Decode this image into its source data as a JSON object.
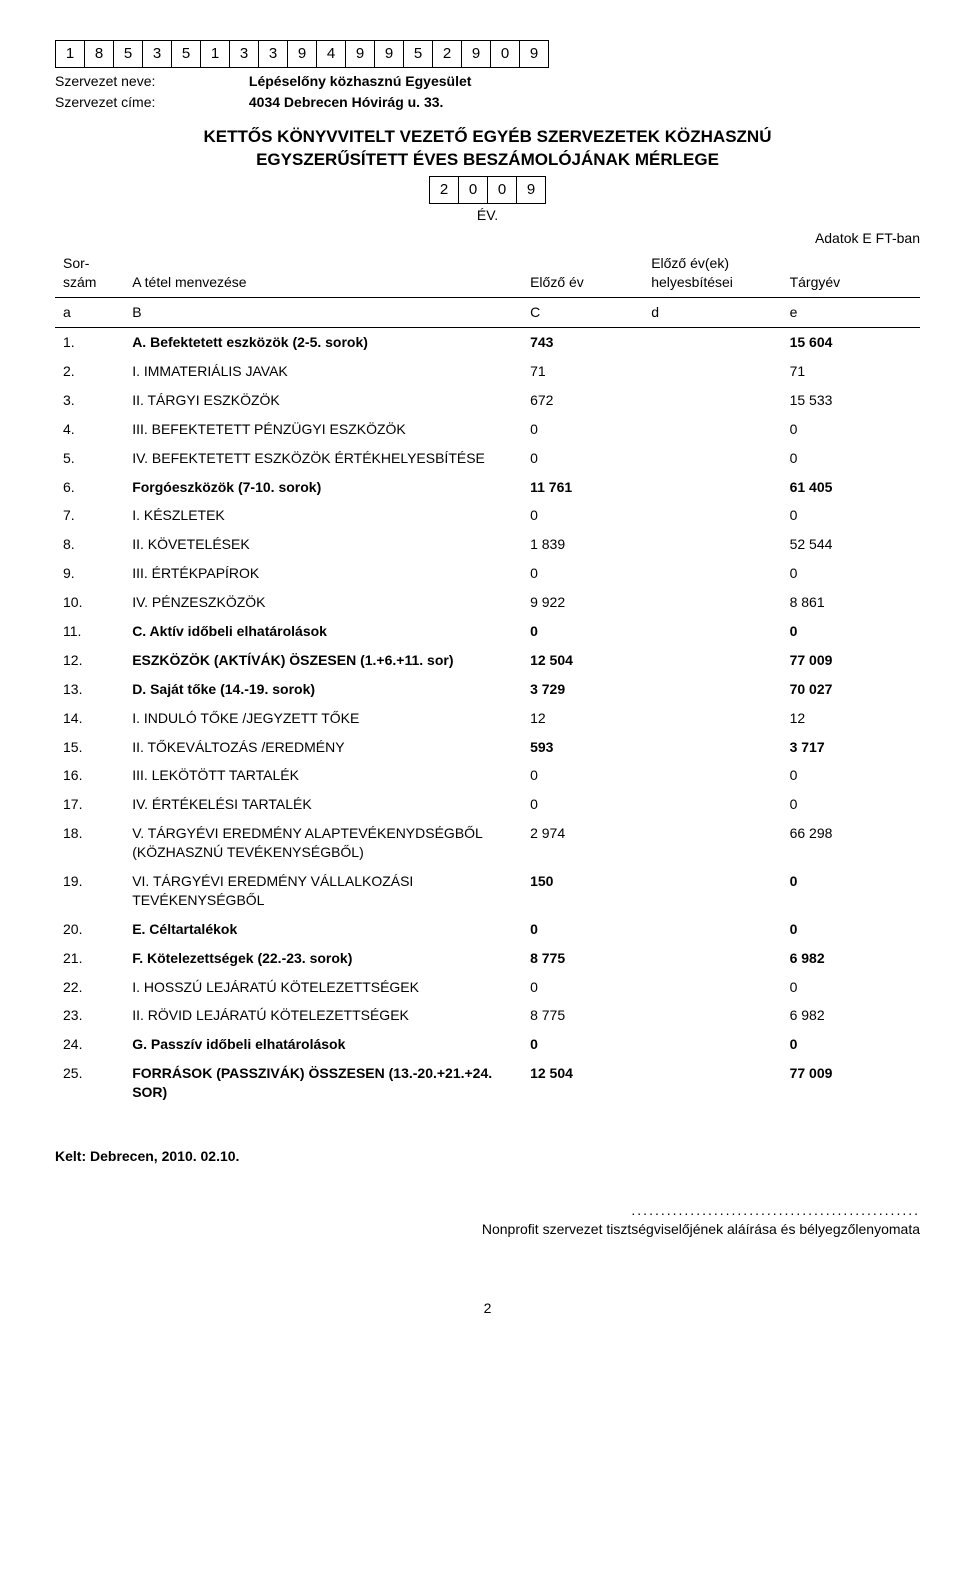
{
  "tax_id_digits": [
    "1",
    "8",
    "5",
    "3",
    "5",
    "1",
    "3",
    "3",
    "9",
    "4",
    "9",
    "9",
    "5",
    "2",
    "9",
    "0",
    "9"
  ],
  "labels": {
    "org_name": "Szervezet neve:",
    "org_addr": "Szervezet címe:"
  },
  "org": {
    "name": "Lépéselőny közhasznú Egyesület",
    "address": "4034 Debrecen Hóvirág u. 33."
  },
  "title_line1": "KETTŐS KÖNYVVITELT VEZETŐ EGYÉB SZERVEZETEK KÖZHASZNÚ",
  "title_line2": "EGYSZERŰSÍTETT ÉVES BESZÁMOLÓJÁNAK MÉRLEGE",
  "year_digits": [
    "2",
    "0",
    "0",
    "9"
  ],
  "year_suffix": "ÉV.",
  "units_text": "Adatok E FT-ban",
  "columns": {
    "n1": "Sor-",
    "n2": "szám",
    "t": "A tétel menvezése",
    "c": "Előző év",
    "d1": "Előző év(ek)",
    "d2": "helyesbítései",
    "e": "Tárgyév"
  },
  "abc": {
    "a": "a",
    "b": "B",
    "c": "C",
    "d": "d",
    "e": "e"
  },
  "rows": [
    {
      "n": "1.",
      "t": "A. Befektetett eszközök (2-5. sorok)",
      "c": "743",
      "d": "",
      "e": "15 604",
      "bold": true
    },
    {
      "n": "2.",
      "t": "I. IMMATERIÁLIS JAVAK",
      "c": "71",
      "d": "",
      "e": "71"
    },
    {
      "n": "3.",
      "t": "II. TÁRGYI ESZKÖZÖK",
      "c": "672",
      "d": "",
      "e": "15 533"
    },
    {
      "n": "4.",
      "t": "III. BEFEKTETETT PÉNZÜGYI ESZKÖZÖK",
      "c": "0",
      "d": "",
      "e": "0"
    },
    {
      "n": "5.",
      "t": "IV. BEFEKTETETT ESZKÖZÖK ÉRTÉKHELYESBÍTÉSE",
      "c": "0",
      "d": "",
      "e": "0"
    },
    {
      "n": "6.",
      "t": "Forgóeszközök (7-10. sorok)",
      "c": "11 761",
      "d": "",
      "e": "61 405",
      "bold": true
    },
    {
      "n": "7.",
      "t": "I. KÉSZLETEK",
      "c": "0",
      "d": "",
      "e": "0"
    },
    {
      "n": "8.",
      "t": "II. KÖVETELÉSEK",
      "c": "1 839",
      "d": "",
      "e": "52 544"
    },
    {
      "n": "9.",
      "t": "III. ÉRTÉKPAPÍROK",
      "c": "0",
      "d": "",
      "e": "0"
    },
    {
      "n": "10.",
      "t": "IV. PÉNZESZKÖZÖK",
      "c": "9 922",
      "d": "",
      "e": "8 861"
    },
    {
      "n": "11.",
      "t": "C. Aktív időbeli elhatárolások",
      "c": "0",
      "d": "",
      "e": "0",
      "bold": true
    },
    {
      "n": "12.",
      "t": "ESZKÖZÖK (AKTÍVÁK) ÖSZESEN (1.+6.+11. sor)",
      "c": "12 504",
      "d": "",
      "e": "77 009",
      "bold": true
    },
    {
      "n": "13.",
      "t": "D. Saját tőke (14.-19. sorok)",
      "c": "3 729",
      "d": "",
      "e": "70 027",
      "bold": true,
      "big": true
    },
    {
      "n": "14.",
      "t": "I. INDULÓ TŐKE /JEGYZETT TŐKE",
      "c": "12",
      "d": "",
      "e": "12"
    },
    {
      "n": "15.",
      "t": "II. TŐKEVÁLTOZÁS /EREDMÉNY",
      "c": "593",
      "d": "",
      "e": "3 717",
      "big": true
    },
    {
      "n": "16.",
      "t": "III. LEKÖTÖTT TARTALÉK",
      "c": "0",
      "d": "",
      "e": "0"
    },
    {
      "n": "17.",
      "t": "IV. ÉRTÉKELÉSI TARTALÉK",
      "c": "0",
      "d": "",
      "e": "0"
    },
    {
      "n": "18.",
      "t": "V. TÁRGYÉVI EREDMÉNY ALAPTEVÉKENYDSÉGBŐL (KÖZHASZNÚ TEVÉKENYSÉGBŐL)",
      "c": "2 974",
      "d": "",
      "e": "66 298"
    },
    {
      "n": "19.",
      "t": "VI. TÁRGYÉVI EREDMÉNY VÁLLALKOZÁSI TEVÉKENYSÉGBŐL",
      "c": "150",
      "d": "",
      "e": "0",
      "big": true
    },
    {
      "n": "20.",
      "t": "E. Céltartalékok",
      "c": "0",
      "d": "",
      "e": "0",
      "bold": true
    },
    {
      "n": "21.",
      "t": "F. Kötelezettségek (22.-23. sorok)",
      "c": "8 775",
      "d": "",
      "e": "6 982",
      "bold": true
    },
    {
      "n": "22.",
      "t": "I. HOSSZÚ LEJÁRATÚ KÖTELEZETTSÉGEK",
      "c": "0",
      "d": "",
      "e": "0"
    },
    {
      "n": "23.",
      "t": "II. RÖVID LEJÁRATÚ KÖTELEZETTSÉGEK",
      "c": "8 775",
      "d": "",
      "e": "6 982"
    },
    {
      "n": "24.",
      "t": "G. Passzív időbeli elhatárolások",
      "c": "0",
      "d": "",
      "e": "0",
      "bold": true,
      "big": true
    },
    {
      "n": "25.",
      "t": "FORRÁSOK (PASSZIVÁK) ÖSSZESEN (13.-20.+21.+24. SOR)",
      "c": "12 504",
      "d": "",
      "e": "77 009",
      "bold": true
    }
  ],
  "dated": "Kelt: Debrecen, 2010. 02.10.",
  "sig_dots": ".................................................",
  "sig_text": "Nonprofit szervezet tisztségviselőjének aláírása és bélyegzőlenyomata",
  "page_num": "2"
}
